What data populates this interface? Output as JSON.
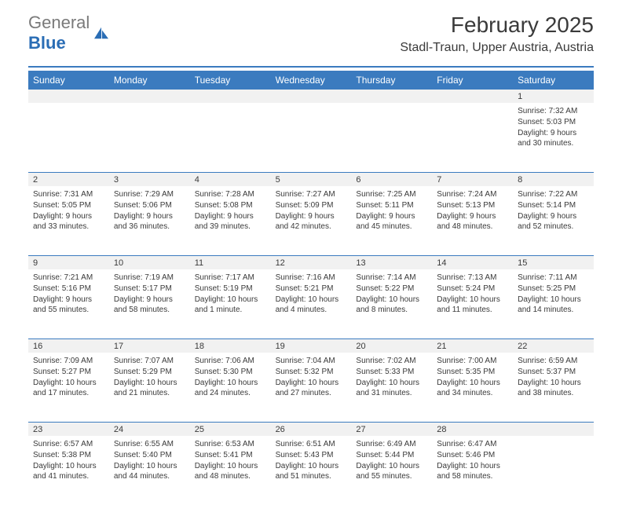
{
  "logo": {
    "word1": "General",
    "word2": "Blue"
  },
  "header": {
    "month_title": "February 2025",
    "location": "Stadl-Traun, Upper Austria, Austria"
  },
  "colors": {
    "accent": "#3b7bbf",
    "text": "#3a3a3a",
    "logo_gray": "#7a7a7a",
    "logo_blue": "#2a6db5",
    "row_bg": "#f1f1f1",
    "white": "#ffffff"
  },
  "weekdays": [
    "Sunday",
    "Monday",
    "Tuesday",
    "Wednesday",
    "Thursday",
    "Friday",
    "Saturday"
  ],
  "first_weekday_index": 6,
  "days": [
    {
      "n": 1,
      "sunrise": "7:32 AM",
      "sunset": "5:03 PM",
      "daylight": "9 hours and 30 minutes."
    },
    {
      "n": 2,
      "sunrise": "7:31 AM",
      "sunset": "5:05 PM",
      "daylight": "9 hours and 33 minutes."
    },
    {
      "n": 3,
      "sunrise": "7:29 AM",
      "sunset": "5:06 PM",
      "daylight": "9 hours and 36 minutes."
    },
    {
      "n": 4,
      "sunrise": "7:28 AM",
      "sunset": "5:08 PM",
      "daylight": "9 hours and 39 minutes."
    },
    {
      "n": 5,
      "sunrise": "7:27 AM",
      "sunset": "5:09 PM",
      "daylight": "9 hours and 42 minutes."
    },
    {
      "n": 6,
      "sunrise": "7:25 AM",
      "sunset": "5:11 PM",
      "daylight": "9 hours and 45 minutes."
    },
    {
      "n": 7,
      "sunrise": "7:24 AM",
      "sunset": "5:13 PM",
      "daylight": "9 hours and 48 minutes."
    },
    {
      "n": 8,
      "sunrise": "7:22 AM",
      "sunset": "5:14 PM",
      "daylight": "9 hours and 52 minutes."
    },
    {
      "n": 9,
      "sunrise": "7:21 AM",
      "sunset": "5:16 PM",
      "daylight": "9 hours and 55 minutes."
    },
    {
      "n": 10,
      "sunrise": "7:19 AM",
      "sunset": "5:17 PM",
      "daylight": "9 hours and 58 minutes."
    },
    {
      "n": 11,
      "sunrise": "7:17 AM",
      "sunset": "5:19 PM",
      "daylight": "10 hours and 1 minute."
    },
    {
      "n": 12,
      "sunrise": "7:16 AM",
      "sunset": "5:21 PM",
      "daylight": "10 hours and 4 minutes."
    },
    {
      "n": 13,
      "sunrise": "7:14 AM",
      "sunset": "5:22 PM",
      "daylight": "10 hours and 8 minutes."
    },
    {
      "n": 14,
      "sunrise": "7:13 AM",
      "sunset": "5:24 PM",
      "daylight": "10 hours and 11 minutes."
    },
    {
      "n": 15,
      "sunrise": "7:11 AM",
      "sunset": "5:25 PM",
      "daylight": "10 hours and 14 minutes."
    },
    {
      "n": 16,
      "sunrise": "7:09 AM",
      "sunset": "5:27 PM",
      "daylight": "10 hours and 17 minutes."
    },
    {
      "n": 17,
      "sunrise": "7:07 AM",
      "sunset": "5:29 PM",
      "daylight": "10 hours and 21 minutes."
    },
    {
      "n": 18,
      "sunrise": "7:06 AM",
      "sunset": "5:30 PM",
      "daylight": "10 hours and 24 minutes."
    },
    {
      "n": 19,
      "sunrise": "7:04 AM",
      "sunset": "5:32 PM",
      "daylight": "10 hours and 27 minutes."
    },
    {
      "n": 20,
      "sunrise": "7:02 AM",
      "sunset": "5:33 PM",
      "daylight": "10 hours and 31 minutes."
    },
    {
      "n": 21,
      "sunrise": "7:00 AM",
      "sunset": "5:35 PM",
      "daylight": "10 hours and 34 minutes."
    },
    {
      "n": 22,
      "sunrise": "6:59 AM",
      "sunset": "5:37 PM",
      "daylight": "10 hours and 38 minutes."
    },
    {
      "n": 23,
      "sunrise": "6:57 AM",
      "sunset": "5:38 PM",
      "daylight": "10 hours and 41 minutes."
    },
    {
      "n": 24,
      "sunrise": "6:55 AM",
      "sunset": "5:40 PM",
      "daylight": "10 hours and 44 minutes."
    },
    {
      "n": 25,
      "sunrise": "6:53 AM",
      "sunset": "5:41 PM",
      "daylight": "10 hours and 48 minutes."
    },
    {
      "n": 26,
      "sunrise": "6:51 AM",
      "sunset": "5:43 PM",
      "daylight": "10 hours and 51 minutes."
    },
    {
      "n": 27,
      "sunrise": "6:49 AM",
      "sunset": "5:44 PM",
      "daylight": "10 hours and 55 minutes."
    },
    {
      "n": 28,
      "sunrise": "6:47 AM",
      "sunset": "5:46 PM",
      "daylight": "10 hours and 58 minutes."
    }
  ],
  "labels": {
    "sunrise": "Sunrise:",
    "sunset": "Sunset:",
    "daylight": "Daylight:"
  }
}
